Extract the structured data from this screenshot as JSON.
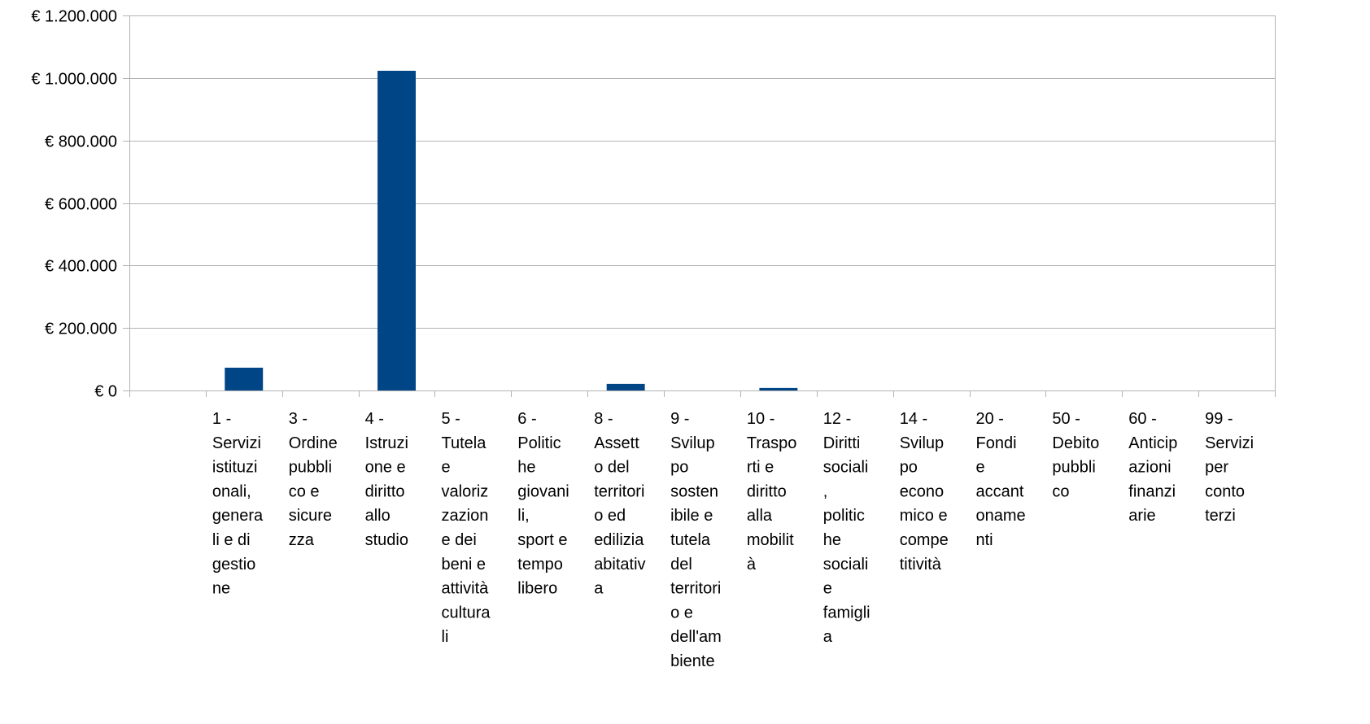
{
  "chart_data": {
    "type": "bar",
    "title": "",
    "xlabel": "",
    "ylabel": "",
    "ylim": [
      0,
      1200000
    ],
    "yticks": [
      0,
      200000,
      400000,
      600000,
      800000,
      1000000,
      1200000
    ],
    "ytick_labels": [
      "€ 0",
      "€ 200.000",
      "€ 400.000",
      "€ 600.000",
      "€ 800.000",
      "€ 1.000.000",
      "€ 1.200.000"
    ],
    "grid": true,
    "legend": "none",
    "bar_color": "#004586",
    "categories": [
      "",
      "1 - Servizi istituzionali, generali e di gestione",
      "3 - Ordine pubblico e sicurezza",
      "4 - Istruzione e diritto allo studio",
      "5 - Tutela e valorizzazione dei beni e attività culturali",
      "6 - Politiche giovanili, sport e tempo libero",
      "8 - Assetto del territorio ed edilizia abitativa",
      "9 - Sviluppo sostenibile e tutela del territorio e dell'ambiente",
      "10 - Trasporti e diritto alla mobilità",
      "12 - Diritti sociali, politiche sociali e famiglia",
      "14 - Sviluppo economico e competitività",
      "20 - Fondi e accantonamenti",
      "50 - Debito pubblico",
      "60 - Anticipazioni finanziarie",
      "99 - Servizi per conto terzi"
    ],
    "category_label_lines": [
      [],
      [
        "1 -",
        "Servizi",
        "istituzi",
        "onali,",
        "genera",
        "li e di",
        "gestio",
        "ne"
      ],
      [
        "3 -",
        "Ordine",
        "pubbli",
        "co e",
        "sicure",
        "zza"
      ],
      [
        "4 -",
        "Istruzi",
        "one e",
        "diritto",
        "allo",
        "studio"
      ],
      [
        "5 -",
        "Tutela",
        "e",
        "valoriz",
        "zazion",
        "e dei",
        "beni e",
        "attività",
        "cultura",
        "li"
      ],
      [
        "6 -",
        "Politic",
        "he",
        "giovani",
        "li,",
        "sport e",
        "tempo",
        "libero"
      ],
      [
        "8 -",
        "Assett",
        "o del",
        "territori",
        "o ed",
        "edilizia",
        "abitativ",
        "a"
      ],
      [
        "9 -",
        "Svilup",
        "po",
        "sosten",
        "ibile e",
        "tutela",
        "del",
        "territori",
        "o e",
        "dell'am",
        "biente"
      ],
      [
        "10 -",
        "Traspo",
        "rti e",
        "diritto",
        "alla",
        "mobilit",
        "à"
      ],
      [
        "12 -",
        "Diritti",
        "sociali",
        ",",
        "politic",
        "he",
        "sociali",
        "e",
        "famigli",
        "a"
      ],
      [
        "14 -",
        "Svilup",
        "po",
        "econo",
        "mico e",
        "compe",
        "titività"
      ],
      [
        "20 -",
        "Fondi",
        "e",
        "accant",
        "oname",
        "nti"
      ],
      [
        "50 -",
        "Debito",
        "pubbli",
        "co"
      ],
      [
        "60 -",
        "Anticip",
        "azioni",
        "finanzi",
        "arie"
      ],
      [
        "99 -",
        "Servizi",
        "per",
        "conto",
        "terzi"
      ]
    ],
    "values": [
      0,
      73000,
      0,
      1023000,
      0,
      0,
      21000,
      0,
      8000,
      0,
      0,
      0,
      0,
      0,
      0
    ]
  }
}
